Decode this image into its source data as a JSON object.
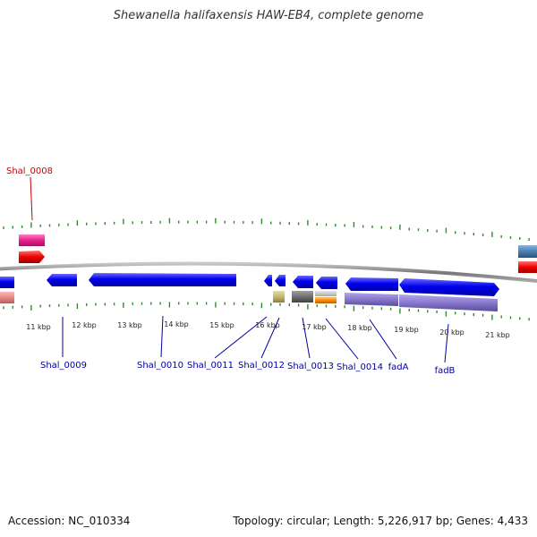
{
  "title": "Shewanella halifaxensis HAW-EB4, complete genome",
  "footer": {
    "accession": "Accession: NC_010334",
    "topology": "Topology: circular; Length: 5,226,917 bp; Genes: 4,433"
  },
  "colors": {
    "backbone": "#8a8a8a",
    "tick": "#2e8b2e",
    "gene_forward": "#0000ee",
    "gene_highlight": "#cc0000",
    "label_blue": "#000099",
    "label_red": "#cc0000",
    "pink": "#e8208a",
    "red": "#ee0000",
    "salmon": "#e88888",
    "khaki": "#c8b870",
    "gray": "#707070",
    "orange": "#ff8c00",
    "lavender": "#8877cc",
    "steelblue": "#4a7fb0"
  },
  "kbp_labels": [
    "11 kbp",
    "12 kbp",
    "13 kbp",
    "14 kbp",
    "15 kbp",
    "16 kbp",
    "17 kbp",
    "18 kbp",
    "19 kbp",
    "20 kbp",
    "21 kbp"
  ],
  "gene_labels": [
    "Shal_0008",
    "Shal_0009",
    "Shal_0010",
    "Shal_0011",
    "Shal_0012",
    "Shal_0013",
    "Shal_0014",
    "fadA",
    "fadB"
  ]
}
